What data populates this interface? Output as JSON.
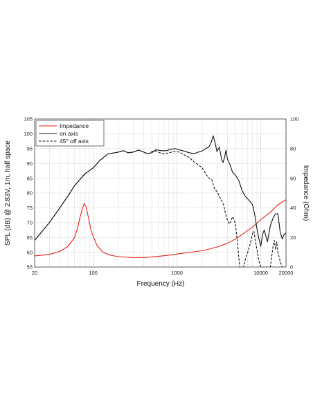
{
  "chart_data": {
    "type": "line",
    "xlabel": "Frequency (Hz)",
    "ylabel_left": "SPL (dB) @ 2.83V, 1m, half space",
    "ylabel_right": "Impedance (Ohm)",
    "x_scale": "log",
    "xlim": [
      20,
      20000
    ],
    "ylim_left": [
      55,
      105
    ],
    "ylim_right": [
      0,
      100
    ],
    "x_tick_labels": [
      "20",
      "100",
      "1000",
      "10000",
      "20000"
    ],
    "y_left_ticks": [
      "55",
      "60",
      "65",
      "70",
      "75",
      "80",
      "85",
      "90",
      "95",
      "100",
      "105"
    ],
    "y_right_ticks": [
      "0",
      "20",
      "40",
      "60",
      "80",
      "100"
    ],
    "grid": true,
    "legend_position": "top-left",
    "series": [
      {
        "name": "Impedance",
        "axis": "right",
        "color": "#e8201a",
        "dash": "solid",
        "points": [
          [
            20,
            7.5
          ],
          [
            30,
            8.5
          ],
          [
            40,
            10.5
          ],
          [
            50,
            14
          ],
          [
            60,
            20
          ],
          [
            65,
            26
          ],
          [
            70,
            34
          ],
          [
            75,
            40
          ],
          [
            78,
            43
          ],
          [
            82,
            41
          ],
          [
            88,
            33
          ],
          [
            95,
            24
          ],
          [
            110,
            15
          ],
          [
            130,
            10
          ],
          [
            160,
            8
          ],
          [
            200,
            7
          ],
          [
            300,
            6.4
          ],
          [
            400,
            6.4
          ],
          [
            600,
            7.2
          ],
          [
            800,
            8
          ],
          [
            1000,
            8.8
          ],
          [
            2000,
            11
          ],
          [
            3000,
            13.5
          ],
          [
            4000,
            16
          ],
          [
            5000,
            19
          ],
          [
            6000,
            22
          ],
          [
            8000,
            27
          ],
          [
            10000,
            32
          ],
          [
            13000,
            37
          ],
          [
            16000,
            42
          ],
          [
            20000,
            45.5
          ]
        ]
      },
      {
        "name": "on axis",
        "axis": "left",
        "color": "#111111",
        "dash": "solid",
        "points": [
          [
            20,
            64
          ],
          [
            30,
            70
          ],
          [
            40,
            75
          ],
          [
            50,
            79
          ],
          [
            60,
            82.5
          ],
          [
            80,
            86.5
          ],
          [
            100,
            88.5
          ],
          [
            120,
            91
          ],
          [
            150,
            93.2
          ],
          [
            200,
            93.8
          ],
          [
            230,
            94.3
          ],
          [
            260,
            93.6
          ],
          [
            300,
            93.8
          ],
          [
            350,
            94.5
          ],
          [
            400,
            93.8
          ],
          [
            450,
            93.3
          ],
          [
            500,
            93.6
          ],
          [
            560,
            94.6
          ],
          [
            650,
            94.3
          ],
          [
            750,
            94.3
          ],
          [
            850,
            94.8
          ],
          [
            950,
            95
          ],
          [
            1050,
            94.6
          ],
          [
            1200,
            94.2
          ],
          [
            1400,
            93.6
          ],
          [
            1600,
            93.3
          ],
          [
            1800,
            93.8
          ],
          [
            2000,
            94.2
          ],
          [
            2200,
            95
          ],
          [
            2400,
            95.5
          ],
          [
            2550,
            97
          ],
          [
            2700,
            99.3
          ],
          [
            2850,
            97
          ],
          [
            3000,
            94
          ],
          [
            3200,
            95.5
          ],
          [
            3400,
            91.5
          ],
          [
            3550,
            90.3
          ],
          [
            3700,
            92
          ],
          [
            3850,
            94.5
          ],
          [
            4000,
            91.5
          ],
          [
            4300,
            89.5
          ],
          [
            4600,
            87
          ],
          [
            5000,
            86
          ],
          [
            5500,
            84
          ],
          [
            6000,
            80.8
          ],
          [
            6500,
            79
          ],
          [
            7000,
            78
          ],
          [
            7500,
            77
          ],
          [
            8000,
            76
          ],
          [
            8500,
            72.5
          ],
          [
            9000,
            68
          ],
          [
            9500,
            64.5
          ],
          [
            10000,
            62
          ],
          [
            10500,
            66
          ],
          [
            11000,
            67.5
          ],
          [
            11500,
            65.5
          ],
          [
            12000,
            63.5
          ],
          [
            13000,
            69
          ],
          [
            14000,
            71.5
          ],
          [
            15000,
            73
          ],
          [
            16000,
            73
          ],
          [
            17000,
            67
          ],
          [
            18000,
            64.5
          ],
          [
            19000,
            66
          ],
          [
            20000,
            66.5
          ]
        ]
      },
      {
        "name": "45° off axis",
        "axis": "left",
        "color": "#111111",
        "dash": "dashed",
        "points": [
          [
            20,
            64
          ],
          [
            30,
            70
          ],
          [
            40,
            75
          ],
          [
            50,
            79
          ],
          [
            60,
            82.5
          ],
          [
            80,
            86.5
          ],
          [
            100,
            88.5
          ],
          [
            120,
            91
          ],
          [
            150,
            93.2
          ],
          [
            200,
            93.8
          ],
          [
            230,
            94.3
          ],
          [
            260,
            93.6
          ],
          [
            300,
            93.8
          ],
          [
            350,
            94.5
          ],
          [
            400,
            93.8
          ],
          [
            450,
            93.2
          ],
          [
            500,
            94
          ],
          [
            560,
            94.2
          ],
          [
            620,
            93.6
          ],
          [
            700,
            93.2
          ],
          [
            800,
            93.6
          ],
          [
            900,
            93.9
          ],
          [
            1000,
            94
          ],
          [
            1100,
            93.6
          ],
          [
            1200,
            93
          ],
          [
            1400,
            92
          ],
          [
            1600,
            90.5
          ],
          [
            1800,
            89.5
          ],
          [
            2000,
            88.5
          ],
          [
            2200,
            86.5
          ],
          [
            2400,
            85
          ],
          [
            2600,
            84.5
          ],
          [
            2800,
            81.5
          ],
          [
            3000,
            80.5
          ],
          [
            3200,
            79
          ],
          [
            3400,
            77.5
          ],
          [
            3600,
            76
          ],
          [
            3800,
            73
          ],
          [
            4000,
            71
          ],
          [
            4200,
            69.5
          ],
          [
            4400,
            70.5
          ],
          [
            4600,
            72
          ],
          [
            4800,
            71
          ],
          [
            5000,
            69
          ],
          [
            5200,
            65
          ],
          [
            5400,
            60
          ],
          [
            5600,
            55
          ],
          [
            6200,
            55
          ],
          [
            6600,
            58
          ],
          [
            7000,
            60
          ],
          [
            7500,
            63
          ],
          [
            8000,
            66.5
          ],
          [
            8300,
            67
          ],
          [
            8600,
            64
          ],
          [
            9000,
            61
          ],
          [
            9500,
            57
          ],
          [
            10000,
            55
          ],
          [
            13000,
            55
          ],
          [
            14000,
            62
          ],
          [
            14500,
            64
          ],
          [
            15000,
            61
          ],
          [
            15500,
            63.5
          ],
          [
            16000,
            60
          ],
          [
            17000,
            57
          ],
          [
            18000,
            55
          ],
          [
            20000,
            55
          ]
        ]
      }
    ]
  }
}
